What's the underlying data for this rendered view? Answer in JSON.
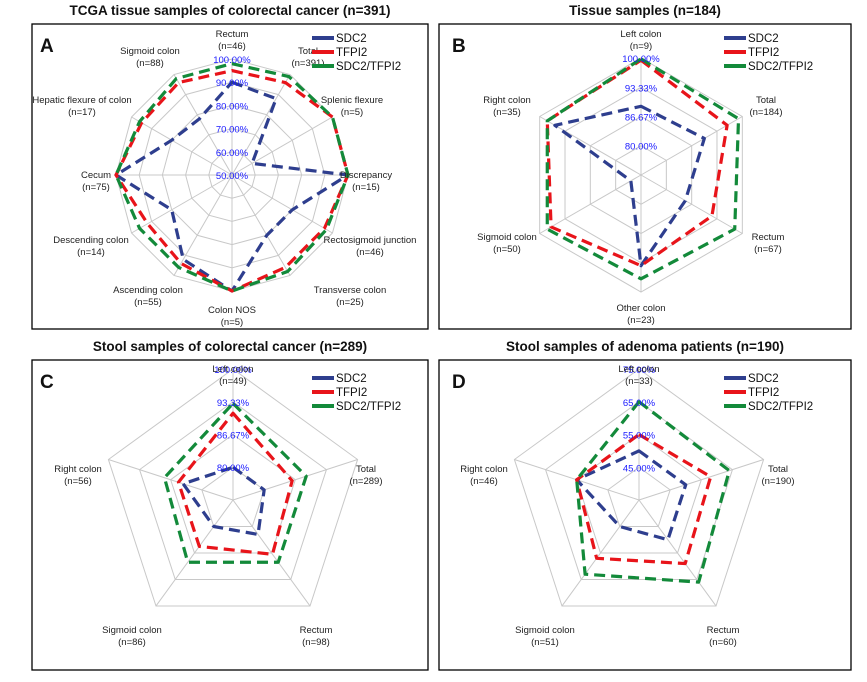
{
  "colors": {
    "SDC2": "#2e3e8e",
    "TFPI2": "#e8141a",
    "SDC2/TFPI2": "#138a3a",
    "grid": "#c8c8c8",
    "tick": "#1a1aff"
  },
  "chart_data": [
    {
      "panel": "A",
      "type": "radar",
      "title": "TCGA tissue samples of colorectal cancer (n=391)",
      "axes": [
        "Rectum\n(n=46)",
        "Total\n(n=391)",
        "Splenic flexure\n(n=5)",
        "Discrepancy\n(n=15)",
        "Rectosigmoid junction\n(n=46)",
        "Transverse colon\n(n=25)",
        "Colon NOS\n(n=5)",
        "Ascending colon\n(n=55)",
        "Descending colon\n(n=14)",
        "Cecum\n(n=75)",
        "Hepatic flexure of colon\n(n=17)",
        "Sigmoid colon\n(n=88)"
      ],
      "rmin": 50,
      "rmax": 100,
      "ticks": [
        "50.00%",
        "60.00%",
        "70.00%",
        "80.00%",
        "90.00%",
        "100.00%"
      ],
      "series": [
        {
          "name": "SDC2",
          "values": [
            90,
            88,
            60,
            100,
            80,
            80,
            100,
            92,
            80,
            100,
            80,
            78
          ]
        },
        {
          "name": "TFPI2",
          "values": [
            95,
            96,
            100,
            100,
            96,
            96,
            100,
            94,
            92,
            100,
            95,
            96
          ]
        },
        {
          "name": "SDC2/TFPI2",
          "values": [
            98,
            99,
            100,
            100,
            97,
            98,
            100,
            96,
            96,
            100,
            96,
            98
          ]
        }
      ]
    },
    {
      "panel": "B",
      "type": "radar",
      "title": "Tissue samples (n=184)",
      "axes": [
        "Left colon\n(n=9)",
        "Total\n(n=184)",
        "Rectum\n(n=67)",
        "Other colon\n(n=23)",
        "Sigmoid colon\n(n=50)",
        "Right colon\n(n=35)"
      ],
      "rmin": 73.33,
      "rmax": 100,
      "ticks": [
        "80.00%",
        "86.67%",
        "93.33%",
        "100.00%"
      ],
      "series": [
        {
          "name": "SDC2",
          "values": [
            89,
            90,
            85,
            94,
            76,
            96
          ]
        },
        {
          "name": "TFPI2",
          "values": [
            99.5,
            96,
            92,
            94,
            97,
            98
          ]
        },
        {
          "name": "SDC2/TFPI2",
          "values": [
            99.8,
            99,
            98,
            97,
            98,
            98
          ]
        }
      ]
    },
    {
      "panel": "C",
      "type": "radar",
      "title": "Stool samples of colorectal cancer (n=289)",
      "axes": [
        "Left colon\n(n=49)",
        "Total\n(n=289)",
        "Rectum\n(n=98)",
        "Sigmoid colon\n(n=86)",
        "Right colon\n(n=56)"
      ],
      "rmin": 73.33,
      "rmax": 100,
      "ticks": [
        "80.00%",
        "86.67%",
        "93.33%",
        "100.00%"
      ],
      "series": [
        {
          "name": "SDC2",
          "values": [
            80,
            80,
            82,
            80,
            84
          ]
        },
        {
          "name": "TFPI2",
          "values": [
            91,
            86,
            87,
            85,
            85
          ]
        },
        {
          "name": "SDC2/TFPI2",
          "values": [
            93,
            89,
            89,
            89,
            88
          ]
        }
      ]
    },
    {
      "panel": "D",
      "type": "radar",
      "title": "Stool samples of adenoma patients (n=190)",
      "axes": [
        "Left colon\n(n=33)",
        "Total\n(n=190)",
        "Rectum\n(n=60)",
        "Sigmoid colon\n(n=51)",
        "Right colon\n(n=46)"
      ],
      "rmin": 35,
      "rmax": 75,
      "ticks": [
        "45.00%",
        "55.00%",
        "65.00%",
        "75.00%"
      ],
      "series": [
        {
          "name": "SDC2",
          "values": [
            50,
            50,
            50,
            45,
            55
          ]
        },
        {
          "name": "TFPI2",
          "values": [
            55,
            58,
            59,
            57,
            55
          ]
        },
        {
          "name": "SDC2/TFPI2",
          "values": [
            65,
            64,
            66,
            63,
            55
          ]
        }
      ]
    }
  ]
}
